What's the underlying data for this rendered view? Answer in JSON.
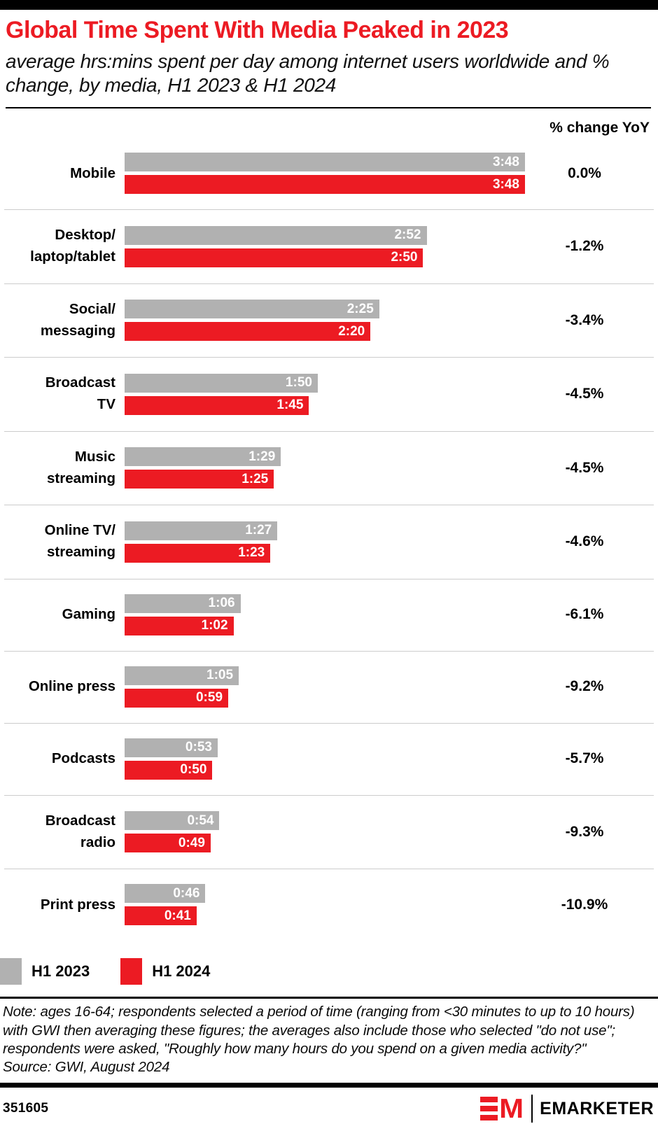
{
  "header": {
    "title": "Global Time Spent With Media Peaked in 2023",
    "subtitle": "average hrs:mins spent per day among internet users worldwide and % change, by media, H1 2023 & H1 2024"
  },
  "columns": {
    "pct_header": "% change YoY"
  },
  "chart_data": {
    "type": "bar",
    "orientation": "horizontal",
    "unit": "hrs:mins spent per day",
    "title": "Global Time Spent With Media Peaked in 2023",
    "series_names": [
      "H1 2023",
      "H1 2024"
    ],
    "categories": [
      "Mobile",
      "Desktop/laptop/tablet",
      "Social/messaging",
      "Broadcast TV",
      "Music streaming",
      "Online TV/streaming",
      "Gaming",
      "Online press",
      "Podcasts",
      "Broadcast radio",
      "Print press"
    ],
    "colors": {
      "h1_2023": "#B1B1B1",
      "h1_2024": "#EC1B23"
    },
    "rows": [
      {
        "label_lines": [
          "Mobile"
        ],
        "h1_2023": "3:48",
        "h1_2023_minutes": 228,
        "h1_2024": "3:48",
        "h1_2024_minutes": 228,
        "pct_change": "0.0%"
      },
      {
        "label_lines": [
          "Desktop/",
          "laptop/tablet"
        ],
        "h1_2023": "2:52",
        "h1_2023_minutes": 172,
        "h1_2024": "2:50",
        "h1_2024_minutes": 170,
        "pct_change": "-1.2%"
      },
      {
        "label_lines": [
          "Social/",
          "messaging"
        ],
        "h1_2023": "2:25",
        "h1_2023_minutes": 145,
        "h1_2024": "2:20",
        "h1_2024_minutes": 140,
        "pct_change": "-3.4%"
      },
      {
        "label_lines": [
          "Broadcast",
          "TV"
        ],
        "h1_2023": "1:50",
        "h1_2023_minutes": 110,
        "h1_2024": "1:45",
        "h1_2024_minutes": 105,
        "pct_change": "-4.5%"
      },
      {
        "label_lines": [
          "Music",
          "streaming"
        ],
        "h1_2023": "1:29",
        "h1_2023_minutes": 89,
        "h1_2024": "1:25",
        "h1_2024_minutes": 85,
        "pct_change": "-4.5%"
      },
      {
        "label_lines": [
          "Online TV/",
          "streaming"
        ],
        "h1_2023": "1:27",
        "h1_2023_minutes": 87,
        "h1_2024": "1:23",
        "h1_2024_minutes": 83,
        "pct_change": "-4.6%"
      },
      {
        "label_lines": [
          "Gaming"
        ],
        "h1_2023": "1:06",
        "h1_2023_minutes": 66,
        "h1_2024": "1:02",
        "h1_2024_minutes": 62,
        "pct_change": "-6.1%"
      },
      {
        "label_lines": [
          "Online press"
        ],
        "h1_2023": "1:05",
        "h1_2023_minutes": 65,
        "h1_2024": "0:59",
        "h1_2024_minutes": 59,
        "pct_change": "-9.2%"
      },
      {
        "label_lines": [
          "Podcasts"
        ],
        "h1_2023": "0:53",
        "h1_2023_minutes": 53,
        "h1_2024": "0:50",
        "h1_2024_minutes": 50,
        "pct_change": "-5.7%"
      },
      {
        "label_lines": [
          "Broadcast",
          "radio"
        ],
        "h1_2023": "0:54",
        "h1_2023_minutes": 54,
        "h1_2024": "0:49",
        "h1_2024_minutes": 49,
        "pct_change": "-9.3%"
      },
      {
        "label_lines": [
          "Print press"
        ],
        "h1_2023": "0:46",
        "h1_2023_minutes": 46,
        "h1_2024": "0:41",
        "h1_2024_minutes": 41,
        "pct_change": "-10.9%"
      }
    ]
  },
  "legend": [
    {
      "label": "H1 2023",
      "color": "#B1B1B1"
    },
    {
      "label": "H1 2024",
      "color": "#EC1B23"
    }
  ],
  "note": "Note: ages 16-64; respondents selected a period of time (ranging from <30 minutes to up to 10 hours) with GWI then averaging these figures; the averages also include those who selected \"do not use\"; respondents were asked, \"Roughly how many hours do you spend on a given media activity?\"",
  "source": "Source: GWI, August 2024",
  "footer": {
    "chart_id": "351605",
    "logo_monogram_m": "M",
    "brand": "EMARKETER"
  }
}
